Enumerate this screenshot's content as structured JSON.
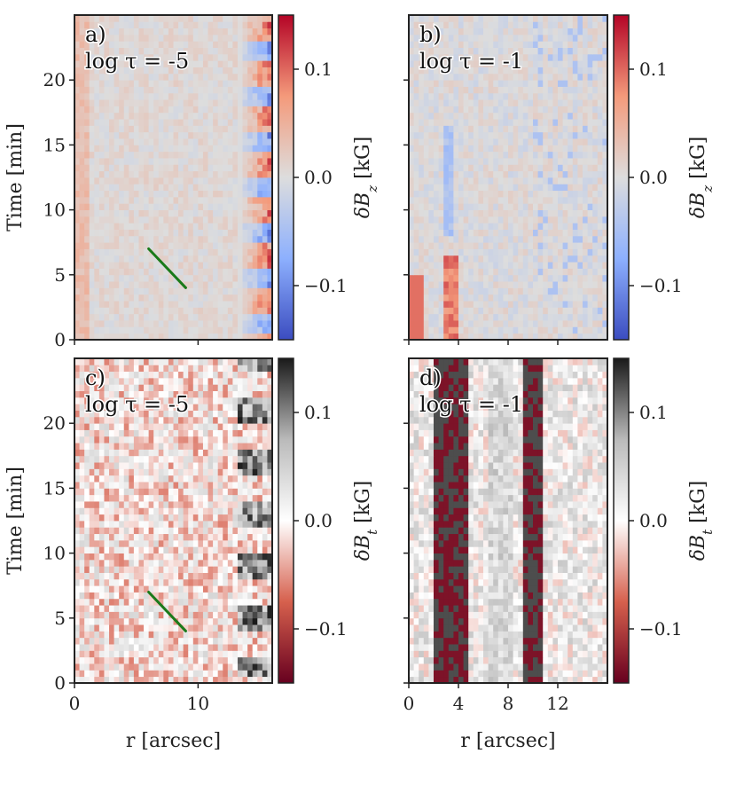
{
  "chart_data": [
    {
      "id": "a",
      "type": "heatmap",
      "panel_label": "a)",
      "panel_sub": "log τ = -5",
      "colormap": "diverging-blue-red",
      "x": {
        "label": "r [arcsec]",
        "range": [
          0,
          16
        ],
        "ticks": [
          0,
          10
        ],
        "tick_labels": [
          "0",
          "10"
        ],
        "tick_labels_shown": false
      },
      "y": {
        "label": "Time [min]",
        "range": [
          0,
          25
        ],
        "ticks": [
          0,
          5,
          10,
          15,
          20
        ],
        "tick_labels": [
          "0",
          "5",
          "10",
          "15",
          "20"
        ],
        "tick_labels_shown": true
      },
      "colorbar": {
        "label": "δB_z [kG]",
        "label_main": "δB",
        "label_sub": "z",
        "label_unit": " [kG]",
        "range": [
          -0.15,
          0.15
        ],
        "ticks": [
          -0.1,
          0.0,
          0.1
        ],
        "tick_labels": [
          "−0.1",
          "0.0",
          "0.1"
        ]
      },
      "annotation_line": {
        "x": [
          6,
          9
        ],
        "y": [
          7,
          4
        ],
        "color": "#1a7a1a"
      }
    },
    {
      "id": "b",
      "type": "heatmap",
      "panel_label": "b)",
      "panel_sub": "log τ = -1",
      "colormap": "diverging-blue-red",
      "x": {
        "label": "r [arcsec]",
        "range": [
          0,
          16
        ],
        "ticks": [
          0,
          4,
          8,
          12
        ],
        "tick_labels": [
          "0",
          "4",
          "8",
          "12"
        ],
        "tick_labels_shown": false
      },
      "y": {
        "label": "Time [min]",
        "range": [
          0,
          25
        ],
        "ticks": [
          0,
          5,
          10,
          15,
          20
        ],
        "tick_labels": [
          "0",
          "5",
          "10",
          "15",
          "20"
        ],
        "tick_labels_shown": false
      },
      "colorbar": {
        "label": "δB_z [kG]",
        "label_main": "δB",
        "label_sub": "z",
        "label_unit": " [kG]",
        "range": [
          -0.15,
          0.15
        ],
        "ticks": [
          -0.1,
          0.0,
          0.1
        ],
        "tick_labels": [
          "−0.1",
          "0.0",
          "0.1"
        ]
      }
    },
    {
      "id": "c",
      "type": "heatmap",
      "panel_label": "c)",
      "panel_sub": "log τ = -5",
      "colormap": "red-white-black",
      "x": {
        "label": "r [arcsec]",
        "range": [
          0,
          16
        ],
        "ticks": [
          0,
          10
        ],
        "tick_labels": [
          "0",
          "10"
        ],
        "tick_labels_shown": true
      },
      "y": {
        "label": "Time [min]",
        "range": [
          0,
          25
        ],
        "ticks": [
          0,
          5,
          10,
          15,
          20
        ],
        "tick_labels": [
          "0",
          "5",
          "10",
          "15",
          "20"
        ],
        "tick_labels_shown": true
      },
      "colorbar": {
        "label": "δB_t [kG]",
        "label_main": "δB",
        "label_sub": "t",
        "label_unit": " [kG]",
        "range": [
          -0.15,
          0.15
        ],
        "ticks": [
          -0.1,
          0.0,
          0.1
        ],
        "tick_labels": [
          "−0.1",
          "0.0",
          "0.1"
        ]
      },
      "annotation_line": {
        "x": [
          6,
          9
        ],
        "y": [
          7,
          4
        ],
        "color": "#1a7a1a"
      }
    },
    {
      "id": "d",
      "type": "heatmap",
      "panel_label": "d)",
      "panel_sub": "log τ = -1",
      "colormap": "red-white-black",
      "x": {
        "label": "r [arcsec]",
        "range": [
          0,
          16
        ],
        "ticks": [
          0,
          4,
          8,
          12
        ],
        "tick_labels": [
          "0",
          "4",
          "8",
          "12"
        ],
        "tick_labels_shown": true
      },
      "y": {
        "label": "Time [min]",
        "range": [
          0,
          25
        ],
        "ticks": [
          0,
          5,
          10,
          15,
          20
        ],
        "tick_labels": [
          "0",
          "5",
          "10",
          "15",
          "20"
        ],
        "tick_labels_shown": false
      },
      "colorbar": {
        "label": "δB_t [kG]",
        "label_main": "δB",
        "label_sub": "t",
        "label_unit": " [kG]",
        "range": [
          -0.15,
          0.15
        ],
        "ticks": [
          -0.1,
          0.0,
          0.1
        ],
        "tick_labels": [
          "−0.1",
          "0.0",
          "0.1"
        ]
      }
    }
  ],
  "colors": {
    "annotation_line": "#1a7a1a",
    "frame": "#222222"
  }
}
